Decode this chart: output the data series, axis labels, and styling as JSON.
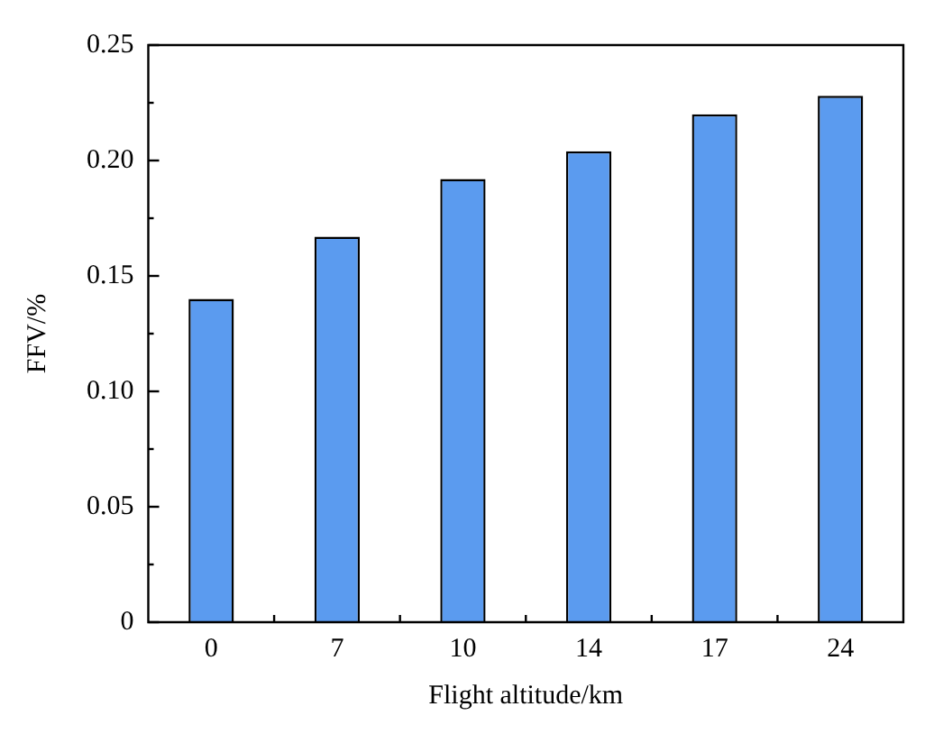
{
  "chart_data": {
    "type": "bar",
    "xlabel": "Flight altitude/km",
    "ylabel": "FFV/%",
    "categories": [
      "0",
      "7",
      "10",
      "14",
      "17",
      "24"
    ],
    "values": [
      0.14,
      0.167,
      0.192,
      0.204,
      0.22,
      0.228
    ],
    "color": "#5b9bef",
    "ylim": [
      0,
      0.25
    ],
    "yticks": [
      0,
      {
        "value": 0.025,
        "label": null
      },
      0.05,
      {
        "value": 0.075,
        "label": null
      },
      {
        "value": 0.1,
        "label": "0.10"
      },
      {
        "value": 0.125,
        "label": null
      },
      0.15,
      {
        "value": 0.175,
        "label": null
      },
      {
        "value": 0.2,
        "label": "0.20"
      },
      {
        "value": 0.225,
        "label": null
      },
      0.25
    ],
    "grid": false,
    "legend": false
  }
}
